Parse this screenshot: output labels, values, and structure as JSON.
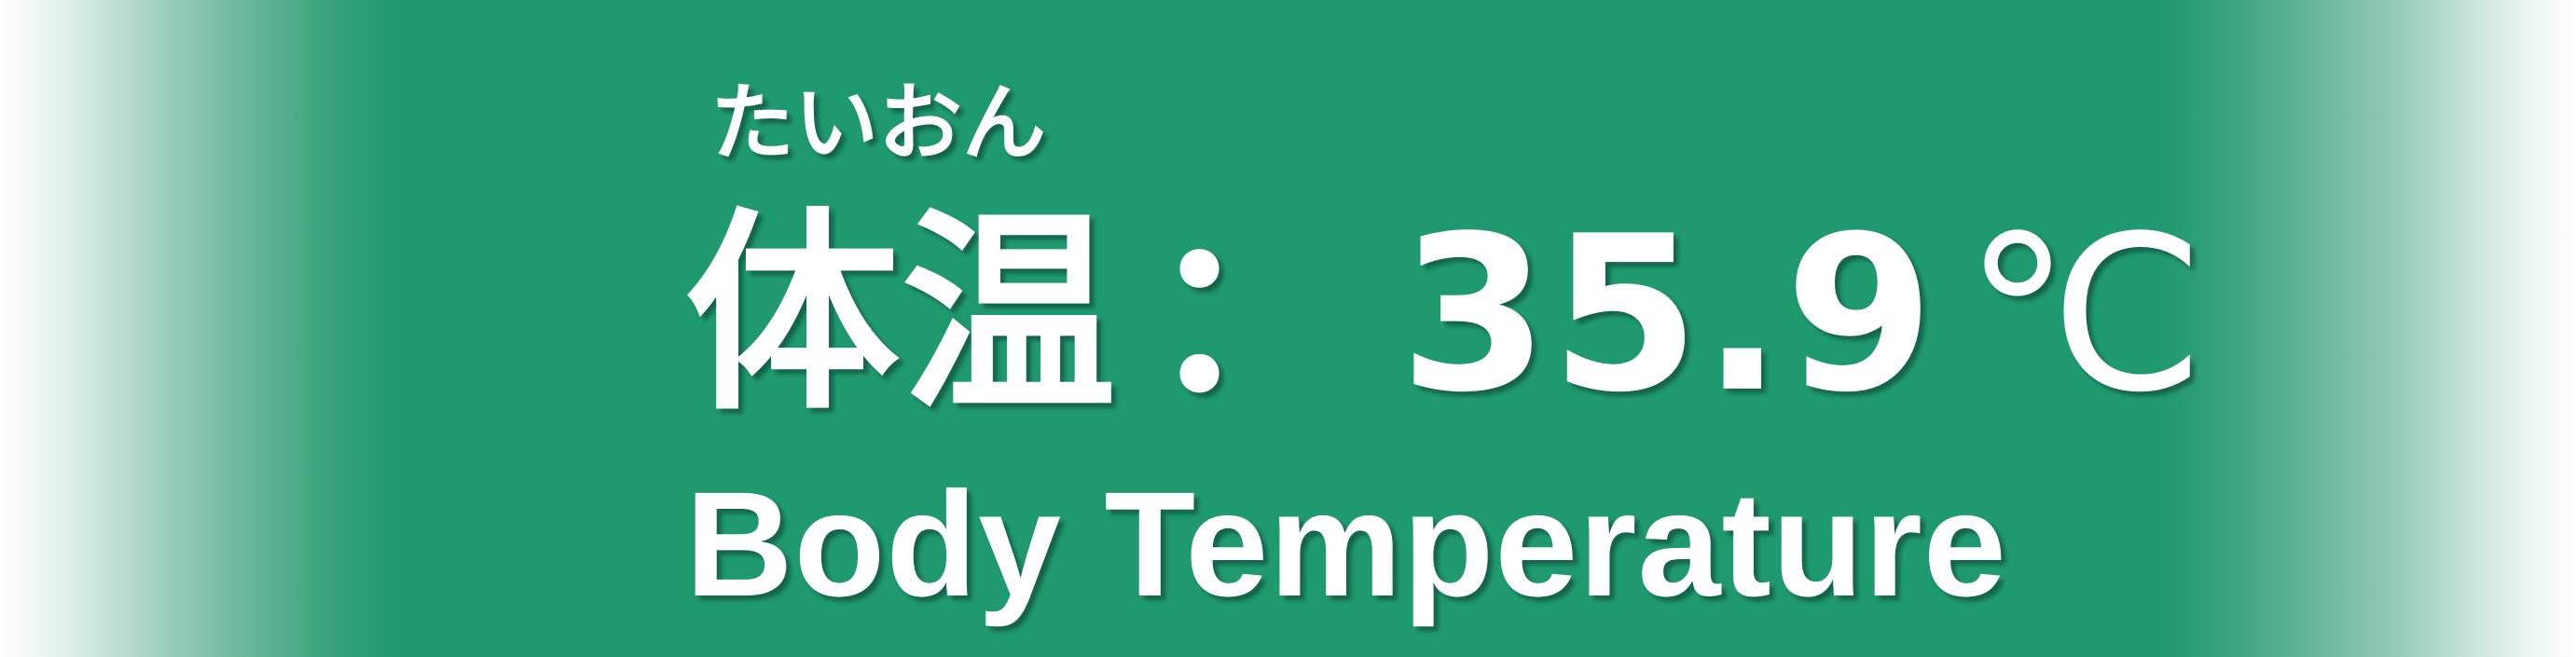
{
  "display": {
    "reading_furigana": "たいおん",
    "label_jp": "体温",
    "separator": "：",
    "value": "35.9",
    "unit": "℃",
    "label_en": "Body Temperature"
  },
  "colors": {
    "background": "#1f9a6e",
    "text": "#ffffff",
    "edge_fade": "#ffffff"
  }
}
